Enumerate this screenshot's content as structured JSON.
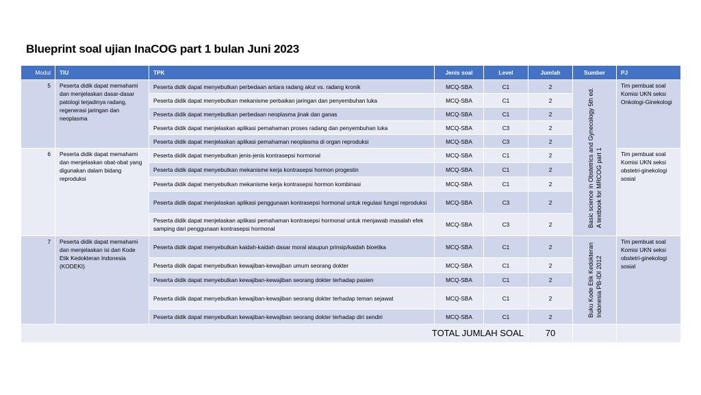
{
  "title": "Blueprint soal ujian InaCOG part 1 bulan Juni 2023",
  "headers": [
    "Modul",
    "TIU",
    "TPK",
    "Jenis soal",
    "Level",
    "Jumlah",
    "Sumber",
    "PJ"
  ],
  "modules": [
    {
      "modul": "5",
      "tiu": "Peserta didik dapat memahami dan menjelaskan dasar-dasar patologi terjadinya radang, regenerasi jaringan dan neoplasma",
      "pj": "Tim pembuat soal Komisi UKN seksi Onkologi-Ginekologi",
      "rows": [
        [
          "Peserta didik dapat menyebutkan perbedaan antara radang akut vs. radang kronik",
          "MCQ-SBA",
          "C1",
          "2"
        ],
        [
          "Peserta didik dapat menyebutkan mekanisme perbaikan jaringan dan penyembuhan luka",
          "MCQ-SBA",
          "C1",
          "2"
        ],
        [
          "Peserta didik dapat menyebutkan perbedaan neoplasma jinak dan ganas",
          "MCQ-SBA",
          "C1",
          "2"
        ],
        [
          "Peserta didik dapat menjelaskan aplikasi pemahaman proses radang dan penyembuhan luka",
          "MCQ-SBA",
          "C3",
          "2"
        ],
        [
          "Peserta didik dapat menjelaskan aplikasi pemahaman neoplasma di organ reproduksi",
          "MCQ-SBA",
          "C3",
          "2"
        ]
      ]
    },
    {
      "modul": "6",
      "tiu": "Peserta didik dapat memahami dan menjelaskan obat-obat yang digunakan dalam bidang reproduksi",
      "pj": "Tim pembuat soal Komisi UKN seksi obstetri-ginekologi sosial",
      "rows": [
        [
          "Peserta didik dapat menyebutkan jenis-jenis kontrasepsi hormonal",
          "MCQ-SBA",
          "C1",
          "2"
        ],
        [
          "Peserta didik dapat menyebutkan mekanisme kerja kontrasepsi hormon progestin",
          "MCQ-SBA",
          "C1",
          "2"
        ],
        [
          "Peserta didik dapat menyebutkan mekanisme kerja kontrasepsi hormon kombinasi",
          "MCQ-SBA",
          "C1",
          "2"
        ],
        [
          "Peserta didik dapat menjelaskan aplikasi penggunaan kontrasepsi hormonal untuk regulasi fungsi reproduksi",
          "MCQ-SBA",
          "C3",
          "2"
        ],
        [
          "Peserta didik dapat menjelaskan aplikasi pemahaman kontrasepsi hormonal untuk menjawab masalah efek samping dari penggunaan kontrasepsi hormonal",
          "MCQ-SBA",
          "C3",
          "2"
        ]
      ]
    },
    {
      "modul": "7",
      "tiu": "Peserta didik dapat memahami dan menjelaskan isi dari Kode Etik Kedokteran Indonesia (KODEKI)",
      "pj": "Tim pembuat soal Komisi UKN seksi obstetri-ginekologi sosial",
      "rows": [
        [
          "Peserta didik dapat menyebutkan kaidah-kaidah dasar moral ataupun prinsip/kaidah bioetika",
          "MCQ-SBA",
          "C1",
          "2"
        ],
        [
          "Peserta didik dapat menyebutkan kewajiban-kewajiban umum seorang dokter",
          "MCQ-SBA",
          "C1",
          "2"
        ],
        [
          "Peserta didik dapat menyebutkan kewajiban-kewajiban seorang dokter terhadap pasien",
          "MCQ-SBA",
          "C1",
          "2"
        ],
        [
          "Peserta didik dapat menyebutkan kewajiban-kewajiban seorang dokter terhadap teman sejawat",
          "MCQ-SBA",
          "C1",
          "2"
        ],
        [
          "Peserta didik dapat menyebutkan kewajiban-kewajiban seorang dokter terhadap diri sendiri",
          "MCQ-SBA",
          "C1",
          "2"
        ]
      ]
    }
  ],
  "sumber": [
    "Basic science in Obstetrics and Gynecology 5th ed.\nA textbook for MRCOG part 1",
    "Buku Kode Etik Kedokteran\nIndonesia PB-IDI 2012"
  ],
  "total_label": "TOTAL JUMLAH SOAL",
  "total_value": "70"
}
